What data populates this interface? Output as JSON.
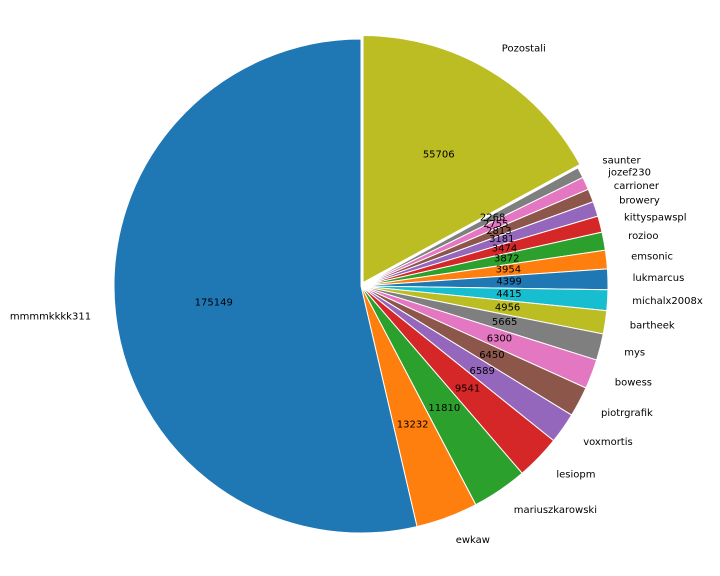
{
  "chart_data": {
    "type": "pie",
    "title": "",
    "labels": [
      "Pozostali",
      "saunter",
      "jozef230",
      "carrioner",
      "browery",
      "kittyspawspl",
      "rozioo",
      "emsonic",
      "lukmarcus",
      "michalx2008x",
      "bartheek",
      "mys",
      "bowess",
      "piotrgrafik",
      "voxmortis",
      "lesiopm",
      "mariuszkarowski",
      "ewkaw",
      "mmmmkkkk311"
    ],
    "values": [
      55706,
      2268,
      2755,
      2813,
      3181,
      3474,
      3872,
      3954,
      4399,
      4415,
      4956,
      5665,
      6300,
      6450,
      6589,
      9541,
      11810,
      13232,
      175149
    ],
    "value_labels": [
      "55706",
      "2268",
      "2755",
      "2813",
      "3181",
      "3474",
      "3872",
      "3954",
      "4399",
      "4415",
      "4956",
      "5665",
      "6300",
      "6450",
      "6589",
      "9541",
      "11810",
      "13232",
      "175149"
    ],
    "colors": [
      "#bcbd22",
      "#7f7f7f",
      "#e377c2",
      "#8c564b",
      "#9467bd",
      "#d62728",
      "#2ca02c",
      "#ff7f0e",
      "#1f77b4",
      "#17becf",
      "#bcbd22",
      "#7f7f7f",
      "#e377c2",
      "#8c564b",
      "#9467bd",
      "#d62728",
      "#2ca02c",
      "#ff7f0e",
      "#1f77b4"
    ],
    "start_angle_deg": 90,
    "direction": "clockwise",
    "explode": "first slice",
    "legend": "none"
  }
}
